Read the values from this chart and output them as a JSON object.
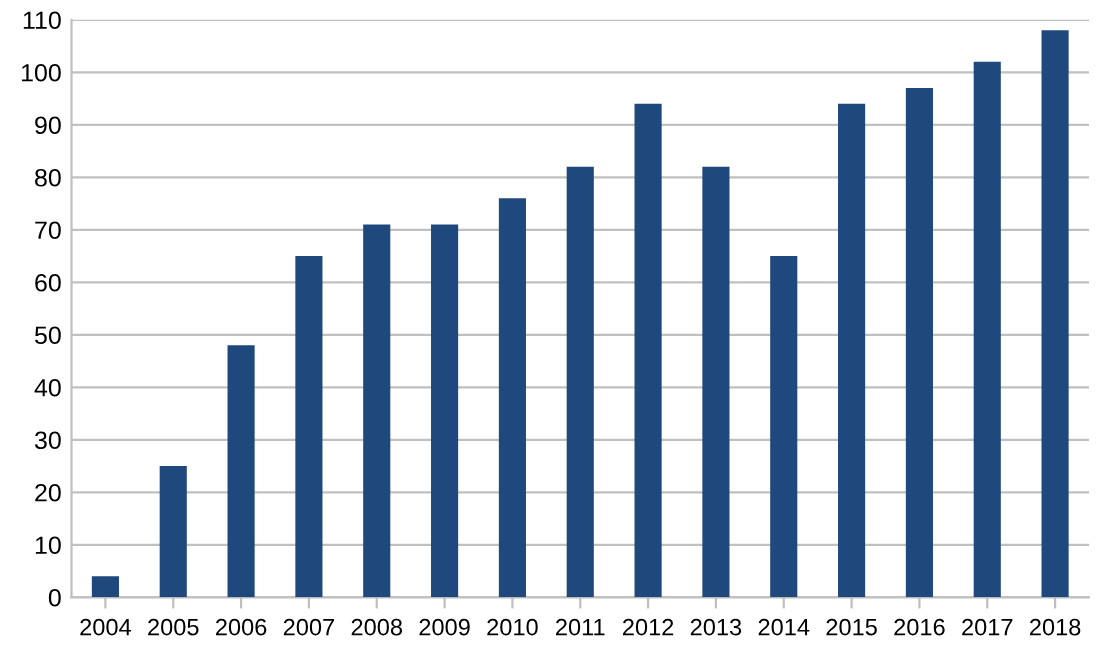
{
  "chart_data": {
    "type": "bar",
    "categories": [
      "2004",
      "2005",
      "2006",
      "2007",
      "2008",
      "2009",
      "2010",
      "2011",
      "2012",
      "2013",
      "2014",
      "2015",
      "2016",
      "2017",
      "2018"
    ],
    "values": [
      4,
      25,
      48,
      65,
      71,
      71,
      76,
      82,
      94,
      82,
      65,
      94,
      97,
      102,
      108
    ],
    "color": "#1f497d",
    "ylim": [
      0,
      110
    ],
    "yticks": [
      0,
      10,
      20,
      30,
      40,
      50,
      60,
      70,
      80,
      90,
      100,
      110
    ],
    "grid": "y"
  }
}
